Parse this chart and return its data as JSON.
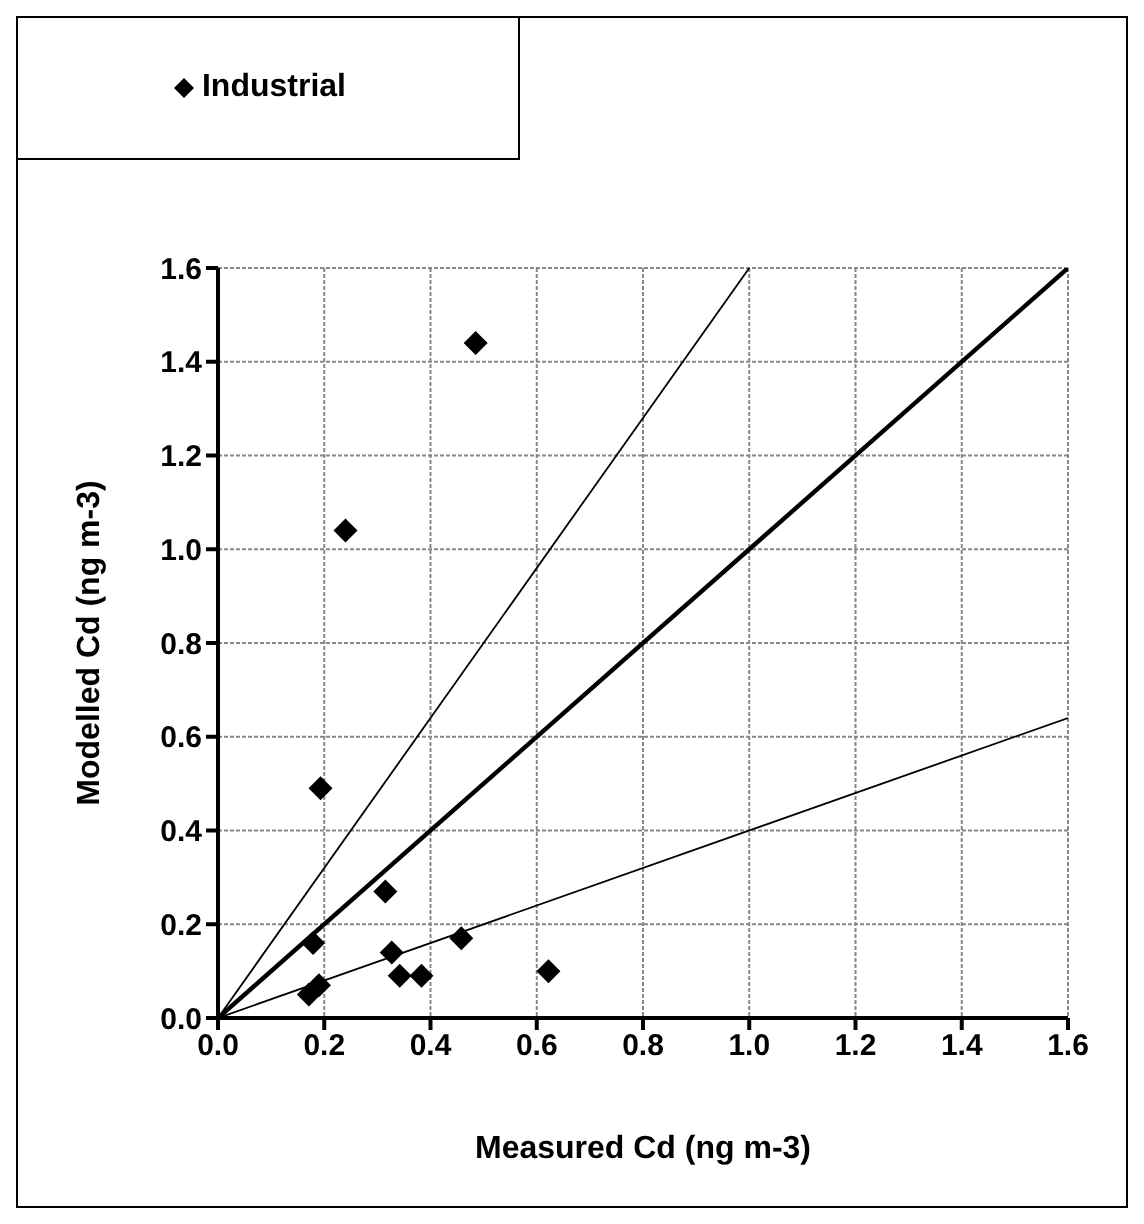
{
  "chart_data": {
    "type": "scatter",
    "xlabel": "Measured Cd (ng m-3)",
    "ylabel": "Modelled Cd (ng m-3)",
    "xlim": [
      0,
      1.6
    ],
    "ylim": [
      0,
      1.6
    ],
    "xticks": [
      {
        "value": 0,
        "label": "0.0"
      },
      0.2,
      0.4,
      0.6,
      0.8,
      {
        "value": 1,
        "label": "1.0"
      },
      1.2,
      1.4,
      1.6
    ],
    "yticks": [
      {
        "value": 0,
        "label": "0.0"
      },
      0.2,
      0.4,
      0.6,
      0.8,
      {
        "value": 1,
        "label": "1.0"
      },
      1.2,
      1.4,
      1.6
    ],
    "grid": true,
    "legend": "top left",
    "series": [
      {
        "name": "Industrial",
        "color": "#000000",
        "marker": "diamond",
        "x": [
          0.485,
          0.24,
          0.193,
          0.315,
          0.179,
          0.327,
          0.458,
          0.622,
          0.342,
          0.383,
          0.19,
          0.171
        ],
        "values": [
          1.44,
          1.04,
          0.49,
          0.27,
          0.16,
          0.14,
          0.17,
          0.1,
          0.09,
          0.09,
          0.07,
          0.05
        ]
      },
      {
        "type": "line",
        "color": "#000000",
        "marker": "none",
        "x": [
          0,
          1.6
        ],
        "values": [
          0,
          1.6
        ]
      },
      {
        "type": "line",
        "color": "#000000",
        "marker": "none",
        "x": [
          0,
          1.0
        ],
        "values": [
          0,
          1.6
        ]
      },
      {
        "type": "line",
        "color": "#000000",
        "marker": "none",
        "x": [
          0,
          1.6
        ],
        "values": [
          0,
          0.64
        ]
      }
    ]
  }
}
